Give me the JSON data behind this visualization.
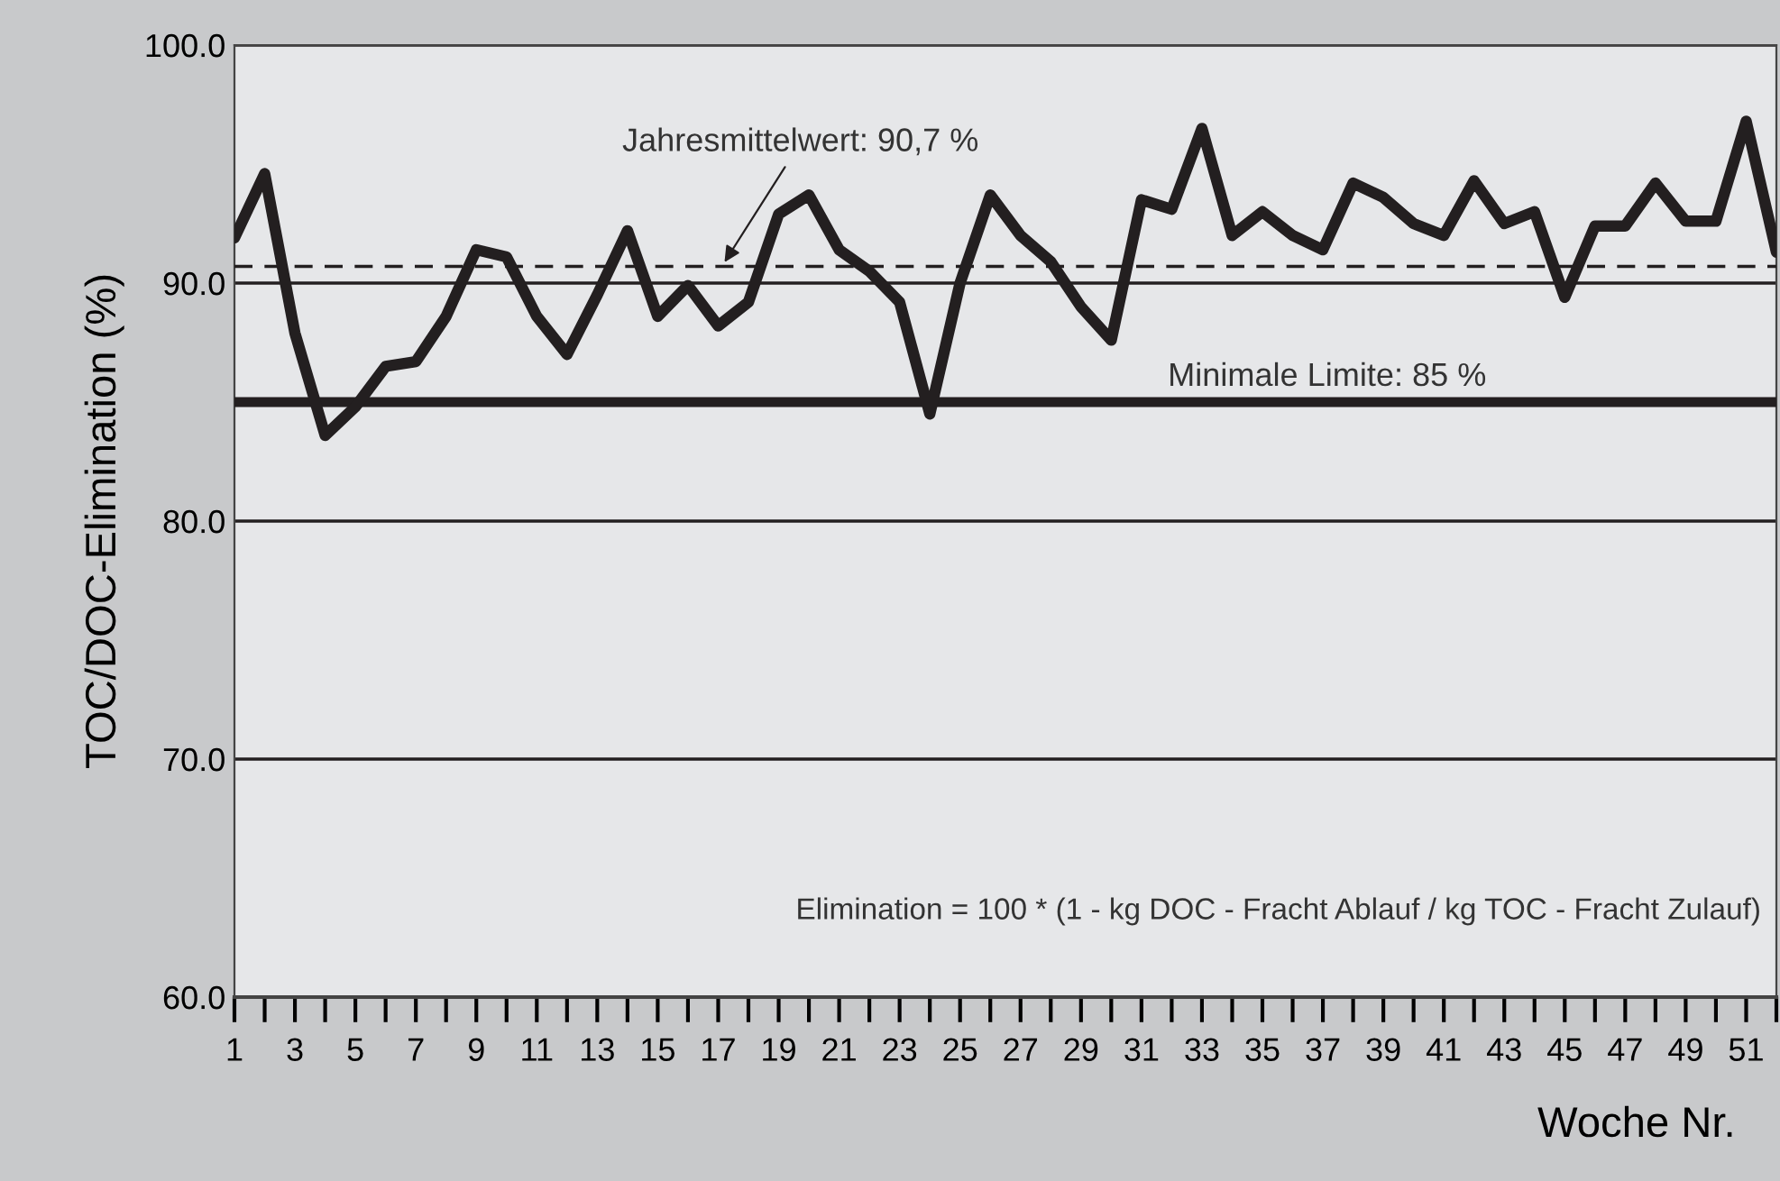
{
  "chart_data": {
    "type": "line",
    "ylabel": "TOC/DOC-Elimination (%)",
    "xlabel": "Woche Nr.",
    "categories": [
      "1",
      null,
      "3",
      null,
      "5",
      null,
      "7",
      null,
      "9",
      null,
      "11",
      null,
      "13",
      null,
      "15",
      null,
      "17",
      null,
      "19",
      null,
      "21",
      null,
      "23",
      null,
      "25",
      null,
      "27",
      null,
      "29",
      null,
      "31",
      null,
      "33",
      null,
      "35",
      null,
      "37",
      null,
      "39",
      null,
      "41",
      null,
      "43",
      null,
      "45",
      null,
      "47",
      null,
      "49",
      null,
      "51",
      null
    ],
    "series": [
      {
        "color": "#231f20",
        "values": [
          91.9,
          94.6,
          87.9,
          83.6,
          84.8,
          86.5,
          86.7,
          88.6,
          91.4,
          91.1,
          88.6,
          87.0,
          89.5,
          92.2,
          88.6,
          89.9,
          88.2,
          89.2,
          92.9,
          93.7,
          91.4,
          90.5,
          89.2,
          84.5,
          90.0,
          93.7,
          92.0,
          90.9,
          89.0,
          87.6,
          93.5,
          93.1,
          96.5,
          92.0,
          93.0,
          92.0,
          91.4,
          94.2,
          93.6,
          92.5,
          92.0,
          94.3,
          92.5,
          93.0,
          89.4,
          92.4,
          92.4,
          94.2,
          92.6,
          92.6,
          96.8,
          91.3
        ]
      }
    ],
    "ylim": [
      60,
      100
    ],
    "yticks": [
      {
        "value": 60,
        "label": "60.0"
      },
      {
        "value": 70,
        "label": "70.0"
      },
      {
        "value": 80,
        "label": "80.0"
      },
      {
        "value": 90,
        "label": "90.0"
      },
      {
        "value": 100,
        "label": "100.0"
      }
    ],
    "grid": "y",
    "ref_lines": [
      {
        "axis": "y",
        "value": 90.7,
        "label": "Jahresmittelwert: 90,7 %",
        "line_style": "dashed",
        "color": "#231f20"
      },
      {
        "axis": "y",
        "value": 85,
        "label": "Minimale Limite: 85 %",
        "line_style": "solid",
        "color": "#231f20"
      }
    ],
    "annotations": [
      "Elimination = 100 * (1 - kg DOC - Fracht Ablauf / kg TOC - Fracht Zulauf)"
    ]
  }
}
